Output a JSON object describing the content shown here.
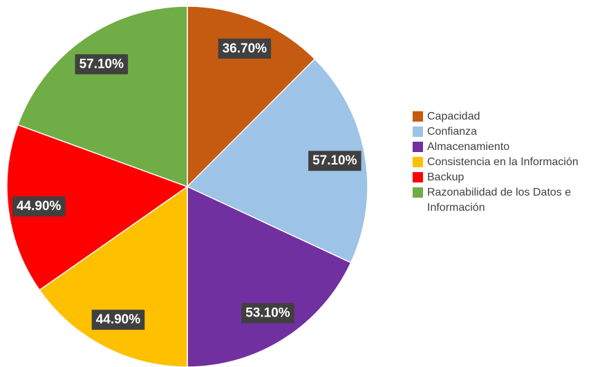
{
  "chart_data": {
    "type": "pie",
    "categories": [
      "Capacidad",
      "Confianza",
      "Almacenamiento",
      "Consistencia en la Información",
      "Backup",
      "Razonabilidad de los Datos e Información"
    ],
    "values": [
      36.7,
      57.1,
      53.1,
      44.9,
      44.9,
      57.1
    ],
    "value_labels": [
      "36.70%",
      "57.10%",
      "53.10%",
      "44.90%",
      "44.90%",
      "57.10%"
    ],
    "colors": [
      "#c55a11",
      "#9dc3e6",
      "#7030a0",
      "#ffc000",
      "#ff0000",
      "#70ad47"
    ],
    "legend": "right"
  }
}
